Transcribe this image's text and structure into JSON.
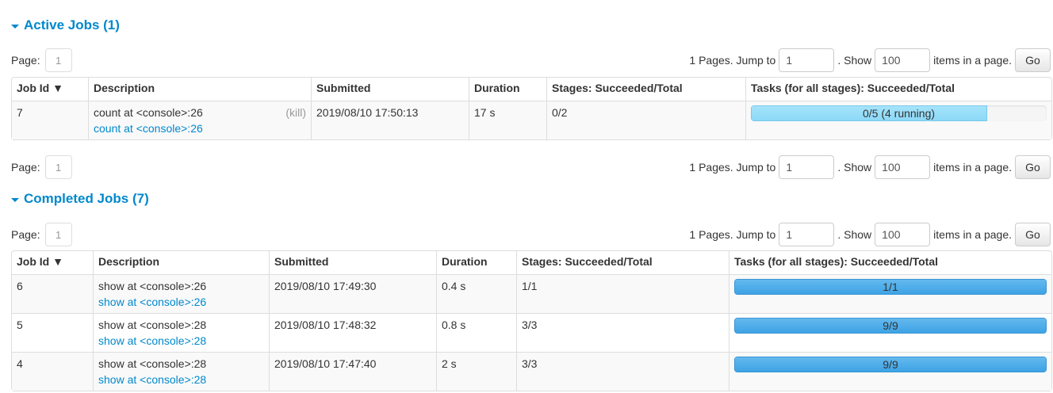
{
  "active": {
    "title": "Active Jobs (1)",
    "pager": {
      "page_label": "Page:",
      "page": "1",
      "pages_text": "1 Pages. Jump to",
      "jump_value": "1",
      "show_text": ". Show",
      "show_value": "100",
      "items_text": "items in a page.",
      "go": "Go"
    },
    "headers": [
      "Job Id ▼",
      "Description",
      "Submitted",
      "Duration",
      "Stages: Succeeded/Total",
      "Tasks (for all stages): Succeeded/Total"
    ],
    "rows": [
      {
        "id": "7",
        "desc": "count at <console>:26",
        "link": "count at <console>:26",
        "kill": "(kill)",
        "submitted": "2019/08/10 17:50:13",
        "duration": "17 s",
        "stages": "0/2",
        "tasks": "0/5 (4 running)",
        "succeeded": 0,
        "running": 4,
        "total": 5
      }
    ]
  },
  "completed": {
    "title": "Completed Jobs (7)",
    "pager": {
      "page_label": "Page:",
      "page": "1",
      "pages_text": "1 Pages. Jump to",
      "jump_value": "1",
      "show_text": ". Show",
      "show_value": "100",
      "items_text": "items in a page.",
      "go": "Go"
    },
    "headers": [
      "Job Id ▼",
      "Description",
      "Submitted",
      "Duration",
      "Stages: Succeeded/Total",
      "Tasks (for all stages): Succeeded/Total"
    ],
    "rows": [
      {
        "id": "6",
        "desc": "show at <console>:26",
        "link": "show at <console>:26",
        "submitted": "2019/08/10 17:49:30",
        "duration": "0.4 s",
        "stages": "1/1",
        "tasks": "1/1",
        "succeeded": 1,
        "running": 0,
        "total": 1
      },
      {
        "id": "5",
        "desc": "show at <console>:28",
        "link": "show at <console>:28",
        "submitted": "2019/08/10 17:48:32",
        "duration": "0.8 s",
        "stages": "3/3",
        "tasks": "9/9",
        "succeeded": 9,
        "running": 0,
        "total": 9
      },
      {
        "id": "4",
        "desc": "show at <console>:28",
        "link": "show at <console>:28",
        "submitted": "2019/08/10 17:47:40",
        "duration": "2 s",
        "stages": "3/3",
        "tasks": "9/9",
        "succeeded": 9,
        "running": 0,
        "total": 9
      }
    ]
  },
  "bottom_pager": {
    "page_label": "Page:",
    "page": "1",
    "pages_text": "1 Pages. Jump to",
    "jump_value": "1",
    "show_text": ". Show",
    "show_value": "100",
    "items_text": "items in a page.",
    "go": "Go"
  }
}
